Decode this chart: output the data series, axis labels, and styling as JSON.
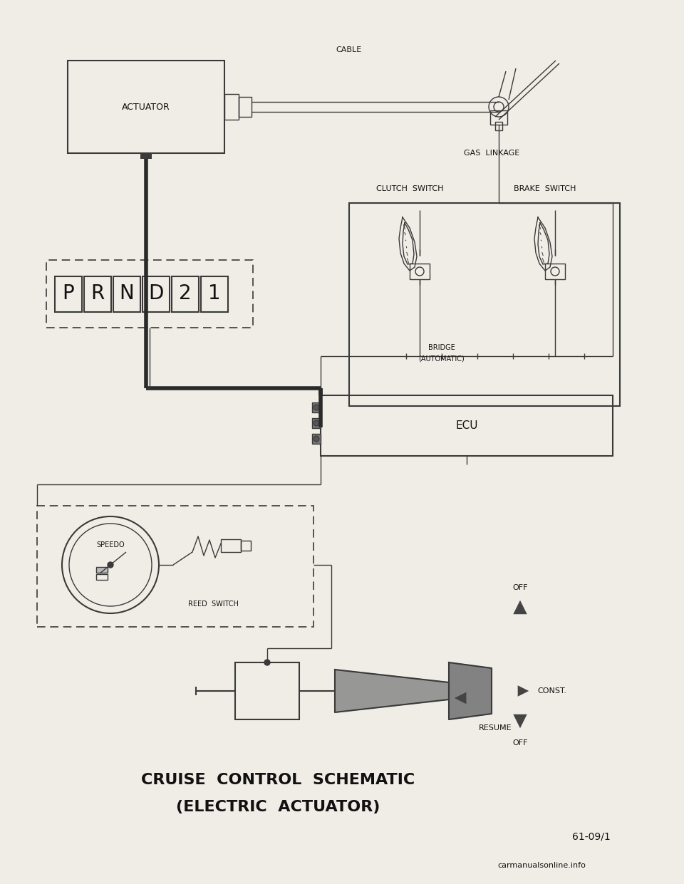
{
  "bg_color": "#f0ede6",
  "line_color": "#3a3a3a",
  "dark_line": "#2a2a2a",
  "title1": "CRUISE  CONTROL  SCHEMATIC",
  "title2": "(ELECTRIC  ACTUATOR)",
  "page_ref": "61-09/1",
  "watermark": "carmanualsonline.info",
  "label_actuator": "ACTUATOR",
  "label_cable": "CABLE",
  "label_gas_linkage": "GAS  LINKAGE",
  "label_clutch": "CLUTCH  SWITCH",
  "label_brake": "BRAKE  SWITCH",
  "label_bridge": "BRIDGE",
  "label_automatic": "(AUTOMATIC)",
  "label_ecu": "ECU",
  "label_speedo": "SPEEDO",
  "label_reed": "REED  SWITCH",
  "label_off_top": "OFF",
  "label_const": "CONST.",
  "label_resume": "RESUME",
  "label_off_bot": "OFF"
}
